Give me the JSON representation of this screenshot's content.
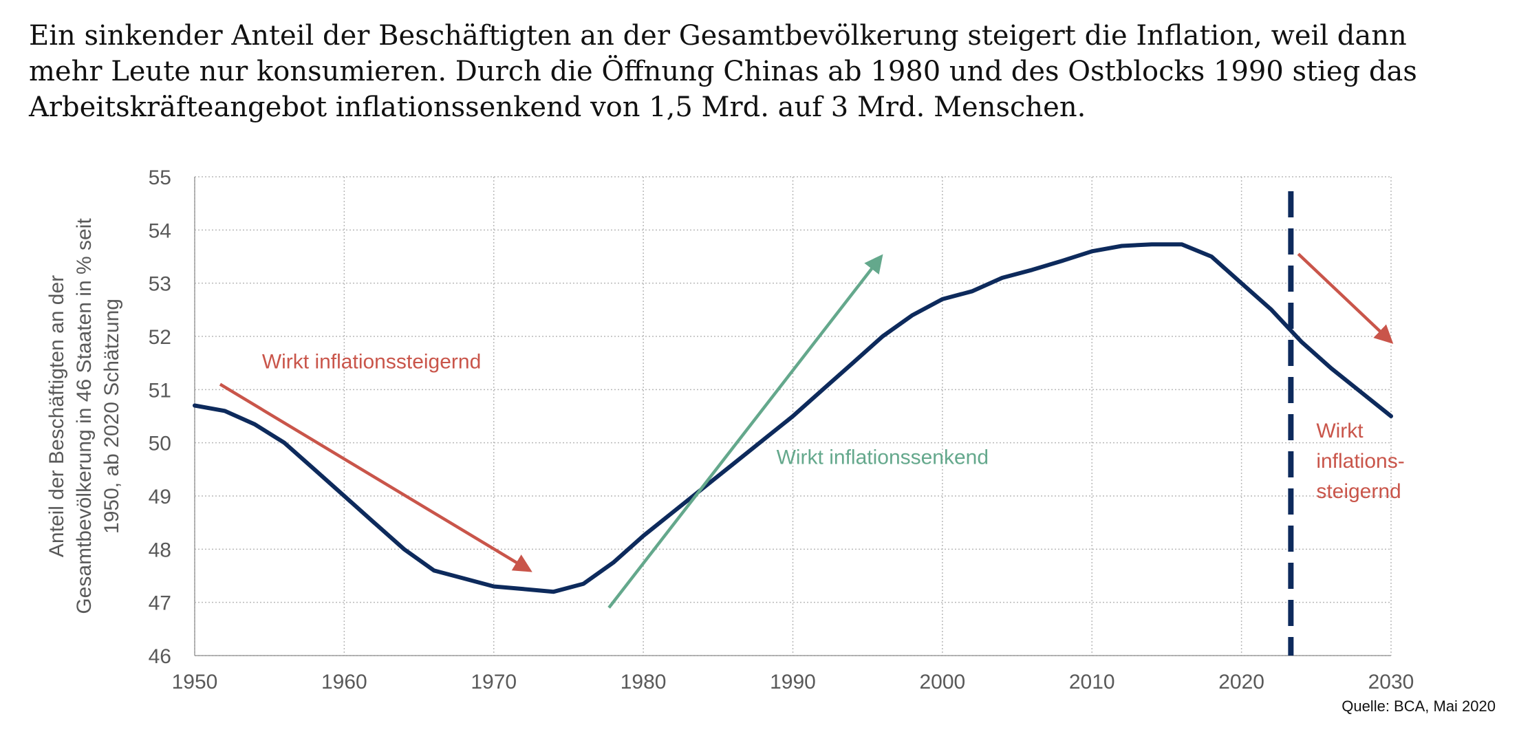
{
  "headline": {
    "line1": "Ein sinkender Anteil der Beschäftigten an der Gesamtbevölkerung steigert die Inflation, weil dann",
    "line2": "mehr Leute nur konsumieren. Durch die Öffnung Chinas ab 1980 und des Ostblocks 1990 stieg das",
    "line3": "Arbeitskräfteangebot inflationssenkend von 1,5 Mrd. auf 3 Mrd. Menschen."
  },
  "source": "Quelle: BCA, Mai 2020",
  "colors": {
    "series": "#0d2a5c",
    "red": "#c9554a",
    "green": "#64a88c",
    "grid": "#b8b8b8",
    "tick": "#595959"
  },
  "chart_data": {
    "type": "line",
    "ylabel": [
      "Anteil der Beschäftigten an der",
      "Gesamtbevölkerung  in 46 Staaten in % seit",
      "1950, ab 2020 Schätzung"
    ],
    "xlim": [
      1950,
      2030
    ],
    "ylim": [
      46,
      55
    ],
    "xticks": [
      1950,
      1960,
      1970,
      1980,
      1990,
      2000,
      2010,
      2020,
      2030
    ],
    "yticks": [
      46,
      47,
      48,
      49,
      50,
      51,
      52,
      53,
      54,
      55
    ],
    "grid": true,
    "series": [
      {
        "x": [
          1950,
          1952,
          1954,
          1956,
          1958,
          1960,
          1962,
          1964,
          1966,
          1968,
          1970,
          1972,
          1974,
          1976,
          1978,
          1980,
          1982,
          1984,
          1986,
          1988,
          1990,
          1992,
          1994,
          1996,
          1998,
          2000,
          2002,
          2004,
          2006,
          2008,
          2010,
          2012,
          2014,
          2016,
          2018,
          2020,
          2022,
          2024,
          2026,
          2028,
          2030
        ],
        "y": [
          50.7,
          50.6,
          50.35,
          50.0,
          49.5,
          49.0,
          48.5,
          48.0,
          47.6,
          47.45,
          47.3,
          47.25,
          47.2,
          47.35,
          47.75,
          48.25,
          48.7,
          49.15,
          49.6,
          50.05,
          50.5,
          51.0,
          51.5,
          52.0,
          52.4,
          52.7,
          52.85,
          53.1,
          53.25,
          53.42,
          53.6,
          53.7,
          53.73,
          53.73,
          53.5,
          53.0,
          52.5,
          51.9,
          51.4,
          50.95,
          50.5
        ]
      }
    ],
    "forecast_marker_x": 2023.3,
    "annotations": [
      {
        "text": "Wirkt inflationssteigernd",
        "color": "red",
        "arrow": [
          [
            1951.7,
            51.1
          ],
          [
            1972.4,
            47.6
          ]
        ],
        "label_at": [
          1954.5,
          51.4
        ]
      },
      {
        "text": "Wirkt inflationssenkend",
        "color": "green",
        "arrow": [
          [
            1977.7,
            46.9
          ],
          [
            1995.9,
            53.5
          ]
        ],
        "label_at": [
          1988.9,
          49.6
        ]
      },
      {
        "text_lines": [
          "Wirkt",
          "inflations-",
          "steigernd"
        ],
        "color": "red",
        "arrow": [
          [
            2023.8,
            53.55
          ],
          [
            2030.0,
            51.9
          ]
        ],
        "label_at": [
          2025.0,
          50.1
        ]
      }
    ]
  }
}
